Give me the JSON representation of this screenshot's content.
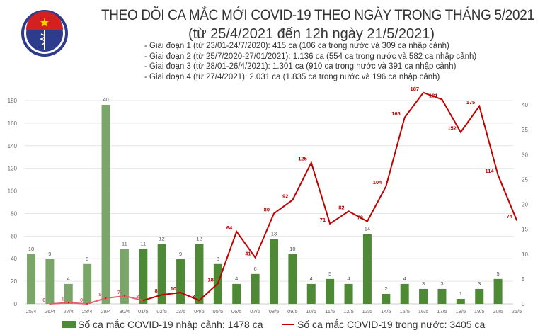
{
  "header": {
    "title": "THEO DÕI CA MẮC MỚI COVID-19 THEO NGÀY TRONG THÁNG 5/2021",
    "subtitle": "(từ 25/4/2021 đến 12h ngày 21/5/2021)",
    "notes": [
      "- Giai đoạn 1 (từ 23/01-24/7/2020): 415 ca (106 ca trong nước và 309 ca nhập cảnh)",
      "- Giai đoạn 2 (từ 25/7/2020-27/01/2021): 1.136 ca (554 ca trong nước và 582 ca nhập cảnh)",
      "- Giai đoạn 3 (từ 28/01-26/4/2021): 1.301 ca (910 ca trong nước và 391 ca nhập cảnh)",
      "- Giai đoạn 4 (từ 27/4/2021): 2.031 ca (1.835 ca trong nước và 196 ca nhập cảnh)"
    ],
    "logo_text": "BỘ Y TẾ · MINISTRY OF HEALTH"
  },
  "chart_data": {
    "type": "bar+line",
    "categories": [
      "25/4",
      "26/4",
      "27/4",
      "28/4",
      "29/4",
      "30/4",
      "01/5",
      "02/5",
      "03/5",
      "04/5",
      "05/5",
      "06/5",
      "07/5",
      "08/5",
      "09/5",
      "10/5",
      "11/5",
      "12/5",
      "13/5",
      "14/5",
      "15/5",
      "16/5",
      "17/5",
      "18/5",
      "19/5",
      "20/5",
      "21/5"
    ],
    "series": [
      {
        "name": "Số ca mắc COVID-19 nhập cảnh: 1478 ca",
        "type": "bar",
        "axis": "right",
        "color": "#4e8a35",
        "color_early": "#7aa66a",
        "values": [
          10,
          9,
          4,
          8,
          40,
          11,
          11,
          12,
          9,
          12,
          8,
          4,
          6,
          13,
          10,
          4,
          5,
          4,
          14,
          2,
          4,
          3,
          3,
          1,
          3,
          5,
          null
        ]
      },
      {
        "name": "Số ca mắc COVID-19 trong nước: 3405 ca",
        "type": "line",
        "axis": "left",
        "color": "#c00000",
        "color_early": "#e0606e",
        "values": [
          null,
          0,
          1,
          0,
          5,
          7,
          3,
          8,
          10,
          3,
          18,
          64,
          41,
          80,
          92,
          125,
          71,
          82,
          73,
          104,
          165,
          187,
          181,
          152,
          175,
          114,
          74
        ]
      }
    ],
    "left_axis": {
      "range": [
        0,
        180
      ],
      "ticks": [
        0,
        20,
        40,
        60,
        80,
        100,
        120,
        140,
        160,
        180
      ]
    },
    "right_axis": {
      "range": [
        0,
        40
      ],
      "ticks": [
        0,
        5,
        10,
        15,
        20,
        25,
        30,
        35,
        40
      ]
    },
    "grid": true,
    "legend": "bottom"
  }
}
